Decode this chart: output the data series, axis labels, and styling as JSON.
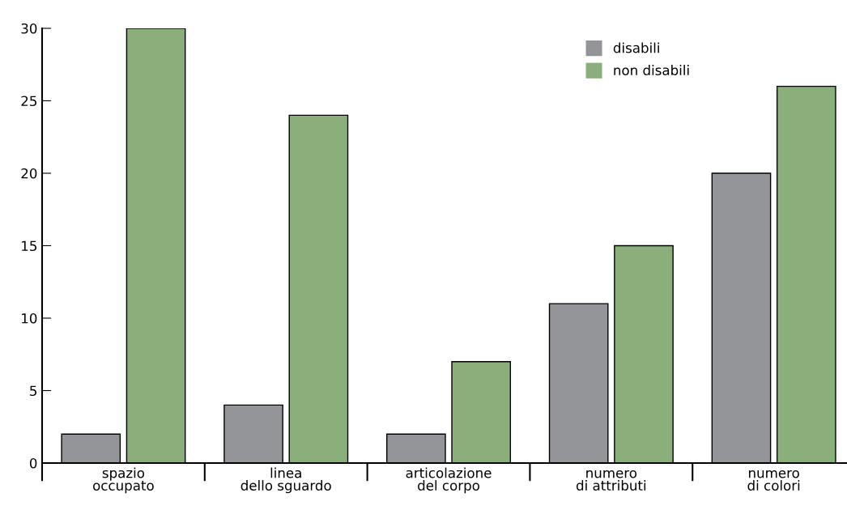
{
  "chart_data": {
    "type": "bar",
    "categories": [
      "spazio\noccupato",
      "linea\ndello sguardo",
      "articolazione\ndel corpo",
      "numero\ndi attributi",
      "numero\ndi colori"
    ],
    "series": [
      {
        "name": "disabili",
        "color": "#939598",
        "values": [
          2,
          4,
          2,
          11,
          20
        ]
      },
      {
        "name": "non disabili",
        "color": "#8aaf7a",
        "values": [
          30,
          24,
          7,
          15,
          26
        ]
      }
    ],
    "ylim": [
      0,
      30
    ],
    "yticks": [
      0,
      5,
      10,
      15,
      20,
      25,
      30
    ],
    "grid": false,
    "legend": "top right"
  }
}
